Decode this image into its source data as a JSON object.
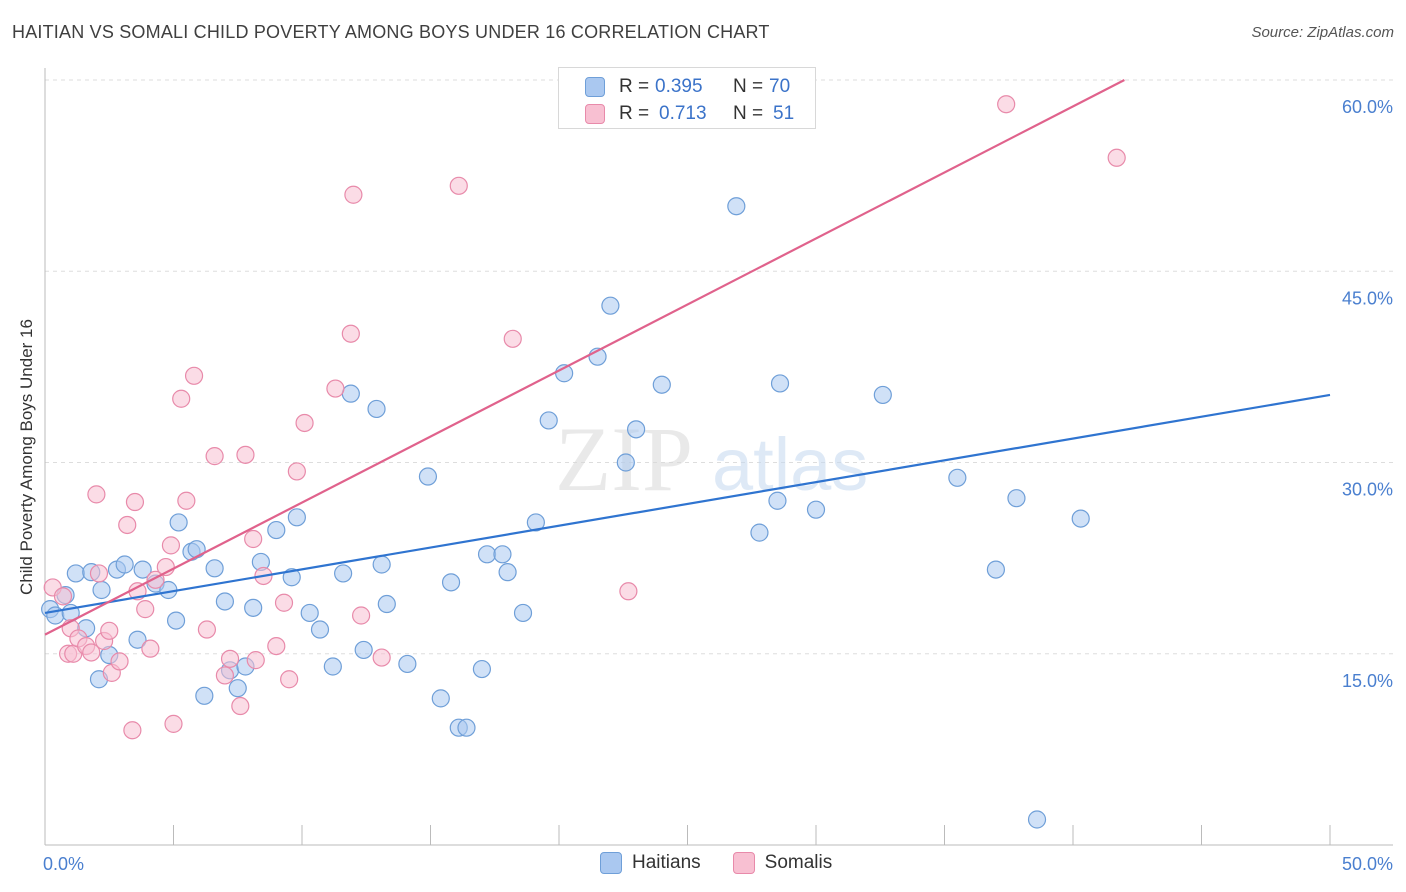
{
  "title": "HAITIAN VS SOMALI CHILD POVERTY AMONG BOYS UNDER 16 CORRELATION CHART",
  "source": "Source: ZipAtlas.com",
  "watermark": {
    "zip": "ZIP",
    "atlas": "atlas"
  },
  "stats": [
    {
      "r_label": "R =",
      "r_value": "0.395",
      "n_label": "N =",
      "n_value": "70",
      "color": "#aac8f0",
      "border": "#6f9fd8"
    },
    {
      "r_label": "R =",
      "r_value": "0.713",
      "n_label": "N =",
      "n_value": "51",
      "color": "#f8c0d2",
      "border": "#e88aaa"
    }
  ],
  "chart_data": {
    "type": "scatter",
    "title": "HAITIAN VS SOMALI CHILD POVERTY AMONG BOYS UNDER 16 CORRELATION CHART",
    "xlabel": "",
    "ylabel": "Child Poverty Among Boys Under 16",
    "xlim": [
      0,
      50
    ],
    "ylim": [
      0,
      60
    ],
    "x_tick_labels": [
      "0.0%",
      "50.0%"
    ],
    "y_tick_labels": [
      "15.0%",
      "30.0%",
      "45.0%",
      "60.0%"
    ],
    "y_ticks": [
      15,
      30,
      45,
      60
    ],
    "grid": "horizontal dashed",
    "legend": "bottom-center",
    "series": [
      {
        "name": "Haitians",
        "color": "#aac8f0",
        "edge": "#6f9fd8",
        "line_color": "#2f74d0",
        "trend": {
          "x": [
            0,
            50
          ],
          "y": [
            18.2,
            35.3
          ]
        },
        "x": [
          0.2,
          0.4,
          0.8,
          1.0,
          1.2,
          1.6,
          1.8,
          2.1,
          2.2,
          2.5,
          2.8,
          3.1,
          3.6,
          3.8,
          4.3,
          4.8,
          5.1,
          5.2,
          5.7,
          5.9,
          6.2,
          6.6,
          7.0,
          7.2,
          7.5,
          7.8,
          8.1,
          8.4,
          9.0,
          9.6,
          9.8,
          10.3,
          10.7,
          11.2,
          11.6,
          11.9,
          12.4,
          12.9,
          13.1,
          13.3,
          14.1,
          14.9,
          15.4,
          15.8,
          16.1,
          16.4,
          17.0,
          17.2,
          17.8,
          18.0,
          18.6,
          19.1,
          19.6,
          20.2,
          21.5,
          22.0,
          22.6,
          23.0,
          24.0,
          26.9,
          27.8,
          28.5,
          28.6,
          30.0,
          32.6,
          35.5,
          37.0,
          37.8,
          38.6,
          40.3
        ],
        "y": [
          18.5,
          18.0,
          19.6,
          18.2,
          21.3,
          17.0,
          21.4,
          13.0,
          20.0,
          14.9,
          21.6,
          22.0,
          16.1,
          21.6,
          20.5,
          20.0,
          17.6,
          25.3,
          23.0,
          23.2,
          11.7,
          21.7,
          19.1,
          13.7,
          12.3,
          14.0,
          18.6,
          22.2,
          24.7,
          21.0,
          25.7,
          18.2,
          16.9,
          14.0,
          21.3,
          35.4,
          15.3,
          34.2,
          22.0,
          18.9,
          14.2,
          28.9,
          11.5,
          20.6,
          9.2,
          9.2,
          13.8,
          22.8,
          22.8,
          21.4,
          18.2,
          25.3,
          33.3,
          37.0,
          38.3,
          42.3,
          30.0,
          32.6,
          36.1,
          50.1,
          24.5,
          27.0,
          36.2,
          26.3,
          35.3,
          28.8,
          21.6,
          27.2,
          2.0,
          25.6
        ]
      },
      {
        "name": "Somalis",
        "color": "#f8c0d2",
        "edge": "#e88aaa",
        "line_color": "#e0628c",
        "trend": {
          "x": [
            0,
            42
          ],
          "y": [
            16.5,
            60.0
          ]
        },
        "x": [
          0.3,
          0.7,
          0.9,
          1.0,
          1.1,
          1.3,
          1.6,
          1.8,
          2.0,
          2.1,
          2.3,
          2.5,
          2.6,
          2.9,
          3.2,
          3.4,
          3.5,
          3.6,
          3.9,
          4.1,
          4.3,
          4.7,
          4.9,
          5.0,
          5.3,
          5.5,
          5.8,
          6.3,
          6.6,
          7.0,
          7.2,
          7.6,
          7.8,
          8.1,
          8.2,
          8.5,
          9.0,
          9.3,
          9.5,
          9.8,
          10.1,
          11.3,
          11.9,
          12.0,
          12.3,
          13.1,
          16.1,
          18.2,
          22.7,
          37.4,
          41.7
        ],
        "y": [
          20.2,
          19.5,
          15.0,
          17.0,
          15.0,
          16.2,
          15.6,
          15.1,
          27.5,
          21.3,
          16.0,
          16.8,
          13.5,
          14.4,
          25.1,
          9.0,
          26.9,
          19.9,
          18.5,
          15.4,
          20.8,
          21.8,
          23.5,
          9.5,
          35.0,
          27.0,
          36.8,
          16.9,
          30.5,
          13.3,
          14.6,
          10.9,
          30.6,
          24.0,
          14.5,
          21.1,
          15.6,
          19.0,
          13.0,
          29.3,
          33.1,
          35.8,
          40.1,
          51.0,
          18.0,
          14.7,
          51.7,
          39.7,
          19.9,
          58.1,
          53.9
        ]
      }
    ]
  }
}
